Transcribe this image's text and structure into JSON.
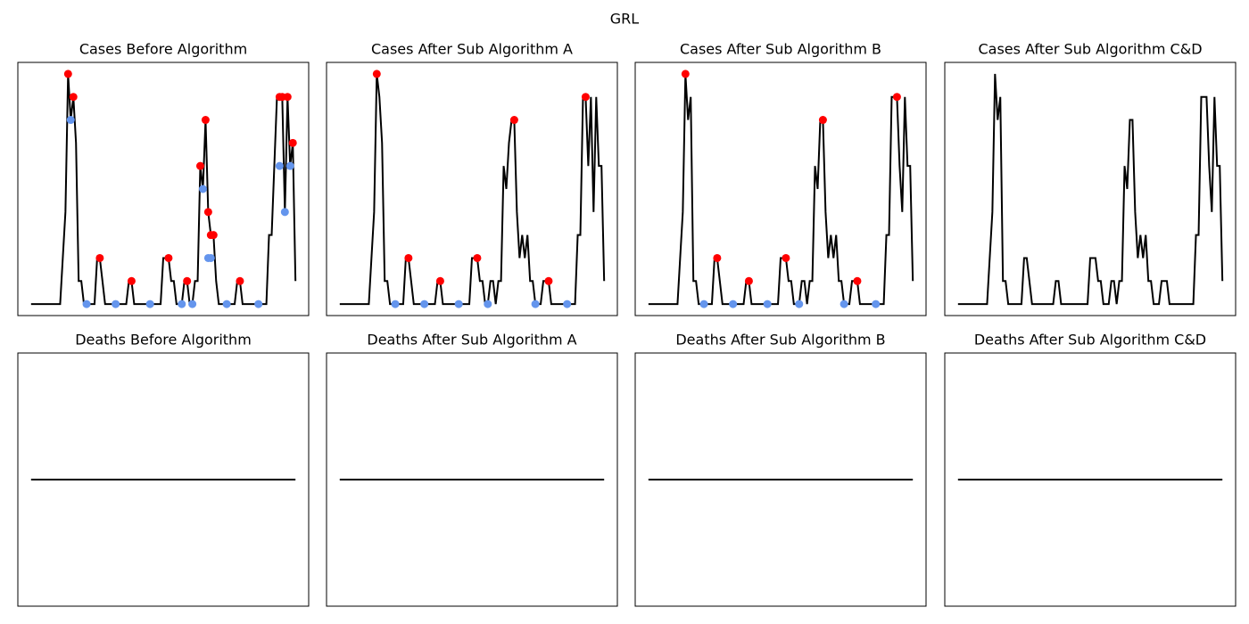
{
  "title": "GRL",
  "chart_data": [
    {
      "type": "line",
      "title": "Cases Before Algorithm",
      "xlim": [
        -5,
        105
      ],
      "ylim": [
        -0.5,
        10.5
      ],
      "x": [
        0,
        1,
        2,
        3,
        4,
        5,
        6,
        7,
        8,
        9,
        10,
        11,
        12,
        13,
        14,
        15,
        16,
        17,
        18,
        19,
        20,
        21,
        22,
        23,
        24,
        25,
        26,
        27,
        28,
        29,
        30,
        31,
        32,
        33,
        34,
        35,
        36,
        37,
        38,
        39,
        40,
        41,
        42,
        43,
        44,
        45,
        46,
        47,
        48,
        49,
        50,
        51,
        52,
        53,
        54,
        55,
        56,
        57,
        58,
        59,
        60,
        61,
        62,
        63,
        64,
        65,
        66,
        67,
        68,
        69,
        70,
        71,
        72,
        73,
        74,
        75,
        76,
        77,
        78,
        79,
        80,
        81,
        82,
        83,
        84,
        85,
        86,
        87,
        88,
        89,
        90,
        91,
        92,
        93,
        94,
        95,
        96,
        97,
        98,
        99,
        100
      ],
      "series": [
        {
          "color": "#000000",
          "values": [
            0,
            0,
            0,
            0,
            0,
            0,
            0,
            0,
            0,
            0,
            0,
            0,
            2,
            4,
            10,
            8,
            9,
            7,
            1,
            1,
            0,
            0,
            0,
            0,
            0,
            2,
            2,
            1,
            0,
            0,
            0,
            0,
            0,
            0,
            0,
            0,
            0,
            1,
            1,
            0,
            0,
            0,
            0,
            0,
            0,
            0,
            0,
            0,
            0,
            0,
            2,
            2,
            2,
            1,
            1,
            0,
            0,
            0,
            1,
            1,
            0,
            0,
            1,
            1,
            6,
            5,
            8,
            4,
            3,
            3,
            1,
            0,
            0,
            0,
            0,
            0,
            0,
            0,
            1,
            1,
            0,
            0,
            0,
            0,
            0,
            0,
            0,
            0,
            0,
            0,
            3,
            3,
            6,
            9,
            9,
            9,
            4,
            9,
            6,
            7,
            1
          ]
        },
        {
          "color": "#ff0000",
          "marker": "o",
          "x": [
            14,
            16,
            26,
            38,
            52,
            59,
            64,
            66,
            67,
            68,
            69,
            79,
            94,
            95,
            97,
            99
          ],
          "values": [
            10,
            9,
            2,
            1,
            2,
            1,
            6,
            8,
            4,
            3,
            3,
            1,
            9,
            9,
            9,
            7
          ]
        },
        {
          "color": "#6495ed",
          "marker": "o",
          "x": [
            15,
            21,
            32,
            45,
            57,
            61,
            65,
            67,
            68,
            74,
            86,
            94,
            96,
            98
          ],
          "values": [
            8,
            0,
            0,
            0,
            0,
            0,
            5,
            2,
            2,
            0,
            0,
            6,
            4,
            6
          ]
        }
      ]
    },
    {
      "type": "line",
      "title": "Cases After Sub Algorithm A",
      "xlim": [
        -5,
        105
      ],
      "ylim": [
        -0.5,
        10.5
      ],
      "x": [
        0,
        1,
        2,
        3,
        4,
        5,
        6,
        7,
        8,
        9,
        10,
        11,
        12,
        13,
        14,
        15,
        16,
        17,
        18,
        19,
        20,
        21,
        22,
        23,
        24,
        25,
        26,
        27,
        28,
        29,
        30,
        31,
        32,
        33,
        34,
        35,
        36,
        37,
        38,
        39,
        40,
        41,
        42,
        43,
        44,
        45,
        46,
        47,
        48,
        49,
        50,
        51,
        52,
        53,
        54,
        55,
        56,
        57,
        58,
        59,
        60,
        61,
        62,
        63,
        64,
        65,
        66,
        67,
        68,
        69,
        70,
        71,
        72,
        73,
        74,
        75,
        76,
        77,
        78,
        79,
        80,
        81,
        82,
        83,
        84,
        85,
        86,
        87,
        88,
        89,
        90,
        91,
        92,
        93,
        94,
        95,
        96,
        97,
        98,
        99,
        100
      ],
      "series": [
        {
          "color": "#000000",
          "values": [
            0,
            0,
            0,
            0,
            0,
            0,
            0,
            0,
            0,
            0,
            0,
            0,
            2,
            4,
            10,
            9,
            7,
            1,
            1,
            0,
            0,
            0,
            0,
            0,
            0,
            2,
            2,
            1,
            0,
            0,
            0,
            0,
            0,
            0,
            0,
            0,
            0,
            1,
            1,
            0,
            0,
            0,
            0,
            0,
            0,
            0,
            0,
            0,
            0,
            0,
            2,
            2,
            2,
            1,
            1,
            0,
            0,
            1,
            1,
            0,
            1,
            1,
            6,
            5,
            7,
            8,
            8,
            4,
            2,
            3,
            2,
            3,
            1,
            1,
            0,
            0,
            0,
            1,
            1,
            1,
            0,
            0,
            0,
            0,
            0,
            0,
            0,
            0,
            0,
            0,
            3,
            3,
            9,
            9,
            6,
            9,
            4,
            9,
            6,
            6,
            1
          ]
        },
        {
          "color": "#ff0000",
          "marker": "o",
          "x": [
            14,
            26,
            38,
            52,
            66,
            79,
            93
          ],
          "values": [
            10,
            2,
            1,
            2,
            8,
            1,
            9
          ]
        },
        {
          "color": "#6495ed",
          "marker": "o",
          "x": [
            21,
            32,
            45,
            56,
            74,
            86
          ],
          "values": [
            0,
            0,
            0,
            0,
            0,
            0
          ]
        }
      ]
    },
    {
      "type": "line",
      "title": "Cases After Sub Algorithm B",
      "xlim": [
        -5,
        105
      ],
      "ylim": [
        -0.5,
        10.5
      ],
      "x": [
        0,
        1,
        2,
        3,
        4,
        5,
        6,
        7,
        8,
        9,
        10,
        11,
        12,
        13,
        14,
        15,
        16,
        17,
        18,
        19,
        20,
        21,
        22,
        23,
        24,
        25,
        26,
        27,
        28,
        29,
        30,
        31,
        32,
        33,
        34,
        35,
        36,
        37,
        38,
        39,
        40,
        41,
        42,
        43,
        44,
        45,
        46,
        47,
        48,
        49,
        50,
        51,
        52,
        53,
        54,
        55,
        56,
        57,
        58,
        59,
        60,
        61,
        62,
        63,
        64,
        65,
        66,
        67,
        68,
        69,
        70,
        71,
        72,
        73,
        74,
        75,
        76,
        77,
        78,
        79,
        80,
        81,
        82,
        83,
        84,
        85,
        86,
        87,
        88,
        89,
        90,
        91,
        92,
        93,
        94,
        95,
        96,
        97,
        98,
        99,
        100
      ],
      "series": [
        {
          "color": "#000000",
          "values": [
            0,
            0,
            0,
            0,
            0,
            0,
            0,
            0,
            0,
            0,
            0,
            0,
            2,
            4,
            10,
            8,
            9,
            1,
            1,
            0,
            0,
            0,
            0,
            0,
            0,
            2,
            2,
            1,
            0,
            0,
            0,
            0,
            0,
            0,
            0,
            0,
            0,
            1,
            1,
            0,
            0,
            0,
            0,
            0,
            0,
            0,
            0,
            0,
            0,
            0,
            2,
            2,
            2,
            1,
            1,
            0,
            0,
            0,
            1,
            1,
            0,
            1,
            1,
            6,
            5,
            8,
            8,
            4,
            2,
            3,
            2,
            3,
            1,
            1,
            0,
            0,
            0,
            1,
            1,
            1,
            0,
            0,
            0,
            0,
            0,
            0,
            0,
            0,
            0,
            0,
            3,
            3,
            9,
            9,
            9,
            6,
            4,
            9,
            6,
            6,
            1
          ]
        },
        {
          "color": "#ff0000",
          "marker": "o",
          "x": [
            14,
            26,
            38,
            52,
            66,
            79,
            94
          ],
          "values": [
            10,
            2,
            1,
            2,
            8,
            1,
            9
          ]
        },
        {
          "color": "#6495ed",
          "marker": "o",
          "x": [
            21,
            32,
            45,
            57,
            74,
            86
          ],
          "values": [
            0,
            0,
            0,
            0,
            0,
            0
          ]
        }
      ]
    },
    {
      "type": "line",
      "title": "Cases After Sub Algorithm C&D",
      "xlim": [
        -5,
        105
      ],
      "ylim": [
        -0.5,
        10.5
      ],
      "x": [
        0,
        1,
        2,
        3,
        4,
        5,
        6,
        7,
        8,
        9,
        10,
        11,
        12,
        13,
        14,
        15,
        16,
        17,
        18,
        19,
        20,
        21,
        22,
        23,
        24,
        25,
        26,
        27,
        28,
        29,
        30,
        31,
        32,
        33,
        34,
        35,
        36,
        37,
        38,
        39,
        40,
        41,
        42,
        43,
        44,
        45,
        46,
        47,
        48,
        49,
        50,
        51,
        52,
        53,
        54,
        55,
        56,
        57,
        58,
        59,
        60,
        61,
        62,
        63,
        64,
        65,
        66,
        67,
        68,
        69,
        70,
        71,
        72,
        73,
        74,
        75,
        76,
        77,
        78,
        79,
        80,
        81,
        82,
        83,
        84,
        85,
        86,
        87,
        88,
        89,
        90,
        91,
        92,
        93,
        94,
        95,
        96,
        97,
        98,
        99,
        100
      ],
      "series": [
        {
          "color": "#000000",
          "values": [
            0,
            0,
            0,
            0,
            0,
            0,
            0,
            0,
            0,
            0,
            0,
            0,
            2,
            4,
            10,
            8,
            9,
            1,
            1,
            0,
            0,
            0,
            0,
            0,
            0,
            2,
            2,
            1,
            0,
            0,
            0,
            0,
            0,
            0,
            0,
            0,
            0,
            1,
            1,
            0,
            0,
            0,
            0,
            0,
            0,
            0,
            0,
            0,
            0,
            0,
            2,
            2,
            2,
            1,
            1,
            0,
            0,
            0,
            1,
            1,
            0,
            1,
            1,
            6,
            5,
            8,
            8,
            4,
            2,
            3,
            2,
            3,
            1,
            1,
            0,
            0,
            0,
            1,
            1,
            1,
            0,
            0,
            0,
            0,
            0,
            0,
            0,
            0,
            0,
            0,
            3,
            3,
            9,
            9,
            9,
            6,
            4,
            9,
            6,
            6,
            1
          ]
        }
      ]
    },
    {
      "type": "line",
      "title": "Deaths Before Algorithm",
      "xlim": [
        -5,
        105
      ],
      "ylim": [
        -0.055,
        0.055
      ],
      "x": [
        0,
        100
      ],
      "series": [
        {
          "color": "#000000",
          "values": [
            0,
            0
          ]
        }
      ]
    },
    {
      "type": "line",
      "title": "Deaths After Sub Algorithm A",
      "xlim": [
        -5,
        105
      ],
      "ylim": [
        -0.055,
        0.055
      ],
      "x": [
        0,
        100
      ],
      "series": [
        {
          "color": "#000000",
          "values": [
            0,
            0
          ]
        }
      ]
    },
    {
      "type": "line",
      "title": "Deaths After Sub Algorithm B",
      "xlim": [
        -5,
        105
      ],
      "ylim": [
        -0.055,
        0.055
      ],
      "x": [
        0,
        100
      ],
      "series": [
        {
          "color": "#000000",
          "values": [
            0,
            0
          ]
        }
      ]
    },
    {
      "type": "line",
      "title": "Deaths After Sub Algorithm C&D",
      "xlim": [
        -5,
        105
      ],
      "ylim": [
        -0.055,
        0.055
      ],
      "x": [
        0,
        100
      ],
      "series": [
        {
          "color": "#000000",
          "values": [
            0,
            0
          ]
        }
      ]
    }
  ]
}
